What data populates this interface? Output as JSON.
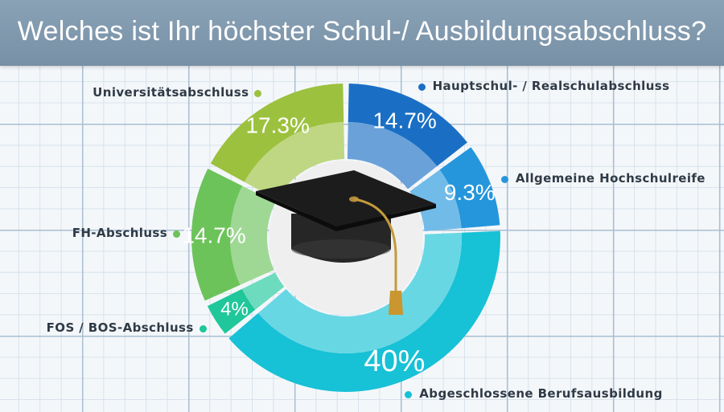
{
  "title": "Welches ist Ihr höchster Schul-/ Ausbildungsabschluss?",
  "chart_data": {
    "type": "pie",
    "title": "Welches ist Ihr höchster Schul-/ Ausbildungsabschluss?",
    "series": [
      {
        "name": "Hauptschul- / Realschulabschluss",
        "value": 14.7,
        "value_label": "14.7%",
        "color": "#1a6fc4"
      },
      {
        "name": "Allgemeine Hochschulreife",
        "value": 9.3,
        "value_label": "9.3%",
        "color": "#2596dc"
      },
      {
        "name": "Abgeschlossene Berufsausbildung",
        "value": 40,
        "value_label": "40%",
        "color": "#17c1d6"
      },
      {
        "name": "FOS / BOS-Abschluss",
        "value": 4,
        "value_label": "4%",
        "color": "#1fc79a"
      },
      {
        "name": "FH-Abschluss",
        "value": 14.7,
        "value_label": "14.7%",
        "color": "#6cc35a"
      },
      {
        "name": "Universitätsabschluss",
        "value": 17.3,
        "value_label": "17.3%",
        "color": "#9cc13e"
      }
    ],
    "legend": "labels outside each segment",
    "center_icon": "graduation-cap-icon"
  }
}
